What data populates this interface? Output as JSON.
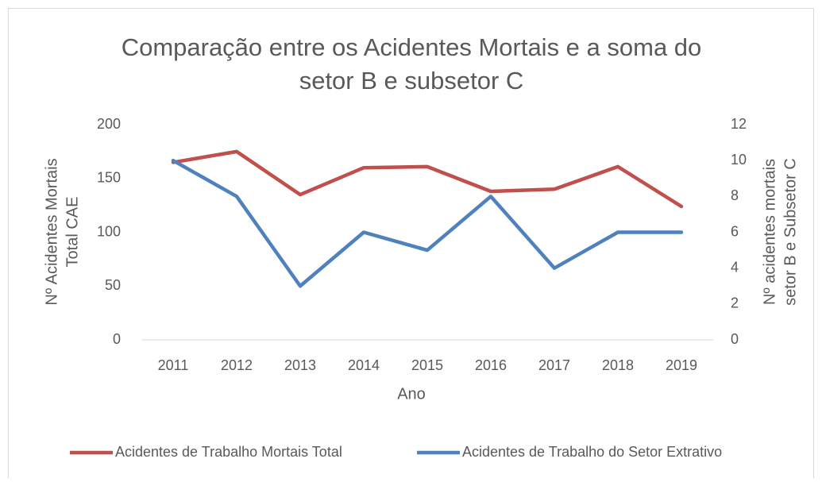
{
  "chart_data": {
    "type": "line",
    "title": [
      "Comparação entre os Acidentes Mortais e a soma do",
      "setor B e subsetor C"
    ],
    "x_label": "Ano",
    "y_label": [
      "Nº Acidentes Mortais",
      "Total CAE"
    ],
    "y2_label": [
      "Nº acidentes mortais",
      "setor B e Subsetor C"
    ],
    "categories": [
      "2011",
      "2012",
      "2013",
      "2014",
      "2015",
      "2016",
      "2017",
      "2018",
      "2019"
    ],
    "series": [
      {
        "name": "Acidentes de Trabalho Mortais Total",
        "color": "#c0504d",
        "values": [
          165,
          175,
          135,
          160,
          161,
          138,
          140,
          161,
          124
        ]
      },
      {
        "name": "Acidentes de Trabalho do Setor Extrativo",
        "color": "#4f81bd",
        "axis": "y2",
        "values": [
          10,
          8,
          3,
          6,
          5,
          8,
          4,
          6,
          6
        ]
      }
    ],
    "ylim": [
      0,
      200
    ],
    "yticks": [
      0,
      50,
      100,
      150,
      200
    ],
    "y2lim": [
      0,
      12
    ],
    "y2ticks": [
      0,
      2,
      4,
      6,
      8,
      10,
      12
    ],
    "grid": false,
    "legend": "bottom"
  }
}
